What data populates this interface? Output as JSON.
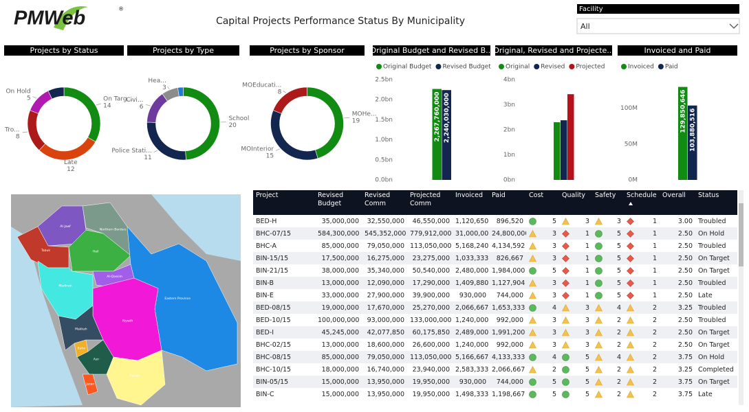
{
  "header": {
    "logo": "PMWeb",
    "logo_mark": "®",
    "title": "Capital Projects Performance Status By Municipality"
  },
  "filter": {
    "label": "Facility",
    "value": "All"
  },
  "chart_data": [
    {
      "type": "donut",
      "title": "Projects by Status",
      "categories": [
        "On Targ...",
        "Late",
        "Tro...",
        "On Hold",
        null
      ],
      "values": [
        14,
        12,
        8,
        5,
        3
      ],
      "colors": [
        "#118b11",
        "#d9430d",
        "#ad1a1a",
        "#b11ab0",
        "#12264f"
      ]
    },
    {
      "type": "donut",
      "title": "Projects by Type",
      "categories": [
        "School",
        "Police Stati...",
        "Civi...",
        "Hea...",
        null
      ],
      "values": [
        20,
        11,
        6,
        3,
        1
      ],
      "colors": [
        "#118b11",
        "#12264f",
        "#6e3a9e",
        "#8c8c8c",
        "#1f7ad6"
      ]
    },
    {
      "type": "donut",
      "title": "Projects by Sponsor",
      "categories": [
        "MOHe...",
        "MOInterior",
        "MOEducati..."
      ],
      "values": [
        19,
        15,
        8
      ],
      "colors": [
        "#118b11",
        "#12264f",
        "#ad1a1a"
      ]
    },
    {
      "type": "bar",
      "title": "Original Budget and Revised B...",
      "categories": [
        null
      ],
      "legend": "top-left",
      "series": [
        {
          "name": "Original Budget",
          "color": "#118b11",
          "values": [
            2267760000
          ],
          "value_labels": [
            "2,267,760,000"
          ]
        },
        {
          "name": "Revised Budget",
          "color": "#12264f",
          "values": [
            2240030000
          ],
          "value_labels": [
            "2,240,030,000"
          ]
        }
      ],
      "ylim": [
        0,
        2500000000
      ],
      "yticks": [
        {
          "value": 0,
          "label": "0.0bn"
        },
        {
          "value": 500000000,
          "label": "0.5bn"
        },
        {
          "value": 1000000000,
          "label": "1.0bn"
        },
        {
          "value": 1500000000,
          "label": "1.5bn"
        },
        {
          "value": 2000000000,
          "label": "2.0bn"
        },
        {
          "value": 2500000000,
          "label": "2.5bn"
        }
      ]
    },
    {
      "type": "bar",
      "title": "Original, Revised and Projecte...",
      "categories": [
        null
      ],
      "legend": "top-left",
      "series": [
        {
          "name": "Original",
          "color": "#118b11",
          "values": [
            2300000000
          ]
        },
        {
          "name": "Revised",
          "color": "#12264f",
          "values": [
            2380000000
          ]
        },
        {
          "name": "Projected",
          "color": "#b5121b",
          "values": [
            3420000000
          ]
        }
      ],
      "ylim": [
        0,
        4000000000
      ],
      "yticks": [
        {
          "value": 0,
          "label": "0bn"
        },
        {
          "value": 1000000000,
          "label": "1bn"
        },
        {
          "value": 2000000000,
          "label": "2bn"
        },
        {
          "value": 3000000000,
          "label": "3bn"
        },
        {
          "value": 4000000000,
          "label": "4bn"
        }
      ]
    },
    {
      "type": "bar",
      "title": "Invoiced and Paid",
      "categories": [
        null
      ],
      "legend": "top-left",
      "series": [
        {
          "name": "Invoiced",
          "color": "#118b11",
          "values": [
            129850646
          ],
          "value_labels": [
            "129,850,646"
          ]
        },
        {
          "name": "Paid",
          "color": "#12264f",
          "values": [
            103880516
          ],
          "value_labels": [
            "103,880,516"
          ]
        }
      ],
      "ylim": [
        0,
        140000000
      ],
      "yticks": [
        {
          "value": 0,
          "label": "0M"
        },
        {
          "value": 50000000,
          "label": "50M"
        },
        {
          "value": 100000000,
          "label": "100M"
        }
      ]
    }
  ],
  "table": {
    "columns": [
      "Project",
      "Revised Budget",
      "Revised Comm",
      "Projected Comm",
      "Invoiced",
      "Paid",
      "Cost",
      "Quality",
      "Safety",
      "Schedule",
      "Overall",
      "Status"
    ],
    "rows": [
      [
        "BED-H",
        "35,000,000",
        "32,550,000",
        "46,550,000",
        "1,120,650",
        "896,520",
        {
          "value": 5,
          "icon": "circle"
        },
        {
          "value": 3,
          "icon": "triangle"
        },
        {
          "value": 3,
          "icon": "triangle"
        },
        {
          "value": 1,
          "icon": "diamond"
        },
        "3.00",
        "Troubled"
      ],
      [
        "BHC-07/15",
        "584,300,000",
        "545,352,000",
        "779,912,000",
        "31,000,000",
        "24,800,000",
        {
          "value": 3,
          "icon": "triangle"
        },
        {
          "value": 1,
          "icon": "diamond"
        },
        {
          "value": 5,
          "icon": "circle"
        },
        {
          "value": 1,
          "icon": "diamond"
        },
        "2.50",
        "On Hold"
      ],
      [
        "BHC-A",
        "85,000,000",
        "79,050,000",
        "113,050,000",
        "5,168,240",
        "4,134,592",
        {
          "value": 3,
          "icon": "triangle"
        },
        {
          "value": 1,
          "icon": "diamond"
        },
        {
          "value": 5,
          "icon": "circle"
        },
        {
          "value": 1,
          "icon": "diamond"
        },
        "2.50",
        "Troubled"
      ],
      [
        "BIN-15/15",
        "17,500,000",
        "16,275,000",
        "23,275,000",
        "1,033,333",
        "826,667",
        {
          "value": 3,
          "icon": "triangle"
        },
        {
          "value": 1,
          "icon": "diamond"
        },
        {
          "value": 5,
          "icon": "circle"
        },
        {
          "value": 1,
          "icon": "diamond"
        },
        "2.50",
        "On Target"
      ],
      [
        "BIN-21/15",
        "38,000,000",
        "35,340,000",
        "50,540,000",
        "2,480,000",
        "1,984,000",
        {
          "value": 5,
          "icon": "circle"
        },
        {
          "value": 1,
          "icon": "diamond"
        },
        {
          "value": 5,
          "icon": "circle"
        },
        {
          "value": 1,
          "icon": "diamond"
        },
        "2.50",
        "On Target"
      ],
      [
        "BIN-B",
        "13,000,000",
        "12,090,000",
        "17,290,000",
        "1,409,880",
        "1,127,904",
        {
          "value": 3,
          "icon": "triangle"
        },
        {
          "value": 1,
          "icon": "diamond"
        },
        {
          "value": 5,
          "icon": "circle"
        },
        {
          "value": 1,
          "icon": "diamond"
        },
        "2.50",
        "Troubled"
      ],
      [
        "BIN-E",
        "33,000,000",
        "27,900,000",
        "39,900,000",
        "930,000",
        "744,000",
        {
          "value": 3,
          "icon": "triangle"
        },
        {
          "value": 1,
          "icon": "diamond"
        },
        {
          "value": 5,
          "icon": "circle"
        },
        {
          "value": 1,
          "icon": "diamond"
        },
        "2.50",
        "Late"
      ],
      [
        "BED-08/15",
        "19,000,000",
        "17,670,000",
        "25,270,000",
        "2,066,667",
        "1,653,333",
        {
          "value": 4,
          "icon": "circle"
        },
        {
          "value": 3,
          "icon": "triangle"
        },
        {
          "value": 4,
          "icon": "triangle"
        },
        {
          "value": 2,
          "icon": "triangle"
        },
        "3.25",
        "Troubled"
      ],
      [
        "BED-10/15",
        "100,000,000",
        "93,000,000",
        "133,000,000",
        "1,240,000",
        "992,000",
        {
          "value": 3,
          "icon": "triangle"
        },
        {
          "value": 3,
          "icon": "triangle"
        },
        {
          "value": 2,
          "icon": "triangle"
        },
        {
          "value": 2,
          "icon": "triangle"
        },
        "2.50",
        "Troubled"
      ],
      [
        "BED-I",
        "45,245,000",
        "42,077,850",
        "60,175,850",
        "2,489,000",
        "1,991,200",
        {
          "value": 3,
          "icon": "triangle"
        },
        {
          "value": 3,
          "icon": "triangle"
        },
        {
          "value": 2,
          "icon": "triangle"
        },
        {
          "value": 2,
          "icon": "triangle"
        },
        "2.50",
        "On Target"
      ],
      [
        "BHC-02/15",
        "13,000,000",
        "18,600,000",
        "26,600,000",
        "1,240,000",
        "992,000",
        {
          "value": 3,
          "icon": "triangle"
        },
        {
          "value": 3,
          "icon": "triangle"
        },
        {
          "value": 2,
          "icon": "triangle"
        },
        {
          "value": 2,
          "icon": "triangle"
        },
        "2.50",
        "On Target"
      ],
      [
        "BHC-08/15",
        "85,000,000",
        "79,050,000",
        "113,050,000",
        "5,166,667",
        "4,133,333",
        {
          "value": 4,
          "icon": "circle"
        },
        {
          "value": 5,
          "icon": "circle"
        },
        {
          "value": 4,
          "icon": "triangle"
        },
        {
          "value": 2,
          "icon": "triangle"
        },
        "3.75",
        "On Hold"
      ],
      [
        "BHC-10/15",
        "18,000,000",
        "16,740,000",
        "23,940,000",
        "2,583,333",
        "2,066,667",
        {
          "value": 2,
          "icon": "triangle"
        },
        {
          "value": 5,
          "icon": "circle"
        },
        {
          "value": 2,
          "icon": "triangle"
        },
        {
          "value": 2,
          "icon": "triangle"
        },
        "3.25",
        "Completed"
      ],
      [
        "BIN-05/15",
        "15,000,000",
        "13,950,000",
        "19,950,000",
        "930,000",
        "744,000",
        {
          "value": 5,
          "icon": "circle"
        },
        {
          "value": 5,
          "icon": "circle"
        },
        {
          "value": 2,
          "icon": "triangle"
        },
        {
          "value": 2,
          "icon": "triangle"
        },
        "3.75",
        "On Target"
      ],
      [
        "BIN-C",
        "15,000,000",
        "13,950,000",
        "19,950,000",
        "1,498,333",
        "1,198,667",
        {
          "value": 5,
          "icon": "circle"
        },
        {
          "value": 5,
          "icon": "circle"
        },
        {
          "value": 2,
          "icon": "triangle"
        },
        {
          "value": 2,
          "icon": "triangle"
        },
        "3.75",
        "Late"
      ]
    ]
  },
  "map": {
    "regions": [
      {
        "name": "Northern Borders",
        "color": "#7b9a8c"
      },
      {
        "name": "Al-Jawf",
        "color": "#7e57c2"
      },
      {
        "name": "Tabuk",
        "color": "#c0392b"
      },
      {
        "name": "Hail",
        "color": "#3cb043"
      },
      {
        "name": "Al-Qassim",
        "color": "#a15ee8"
      },
      {
        "name": "Madinah",
        "color": "#43e8e0"
      },
      {
        "name": "Eastern Province",
        "color": "#1e88e5"
      },
      {
        "name": "Riyadh",
        "color": "#f218d8"
      },
      {
        "name": "Makkah",
        "color": "#344d63"
      },
      {
        "name": "Baha",
        "color": "#f2b02a"
      },
      {
        "name": "Asir",
        "color": "#1f5c4a"
      },
      {
        "name": "Jazan",
        "color": "#ff5722"
      },
      {
        "name": "Najran",
        "color": "#fff68f"
      }
    ]
  }
}
